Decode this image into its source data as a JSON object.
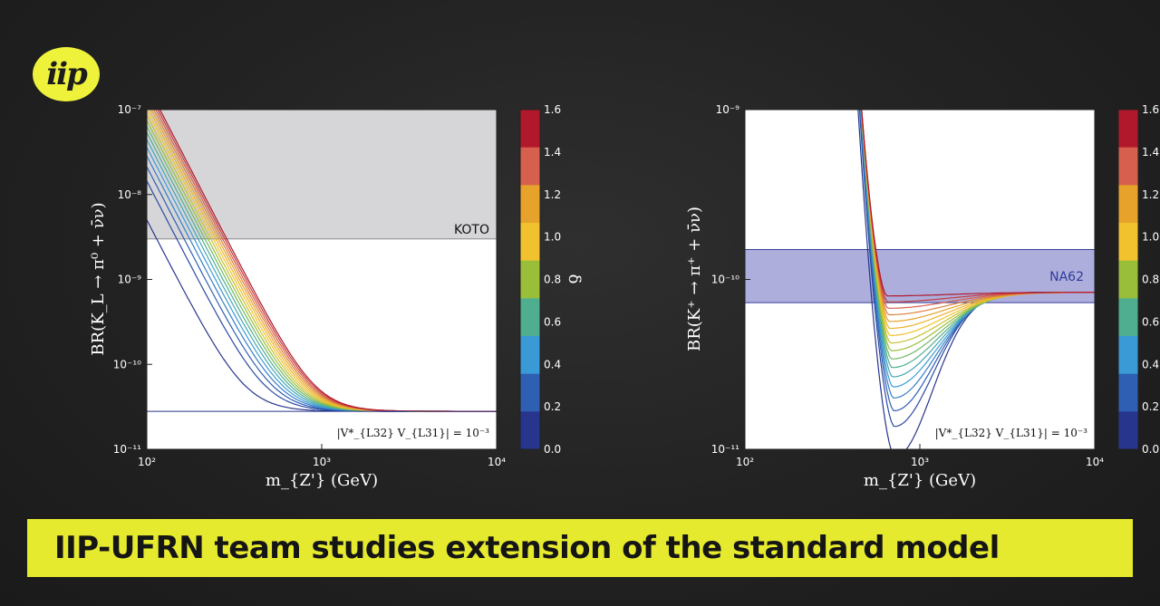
{
  "logo": {
    "text": "iip"
  },
  "banner": {
    "title": "IIP-UFRN team studies extension of the standard model"
  },
  "colorbar": {
    "label": "δ",
    "ticks": [
      "1.6",
      "1.4",
      "1.2",
      "1.0",
      "0.8",
      "0.6",
      "0.4",
      "0.2",
      "0.0"
    ],
    "colors": [
      "#b2182b",
      "#d6604d",
      "#e6a22b",
      "#f2c12e",
      "#99bf3a",
      "#4fae8f",
      "#3a9ad6",
      "#2f5fb3",
      "#27358c"
    ]
  },
  "chart_data": [
    {
      "type": "line",
      "xlabel": "m_{Z'} (GeV)",
      "ylabel": "BR(K_L → π⁰ + ν̄ν)",
      "xscale": "log",
      "yscale": "log",
      "xlim": [
        100,
        10000
      ],
      "ylim": [
        1e-11,
        1e-07
      ],
      "xticks": [
        "10²",
        "10³",
        "10⁴"
      ],
      "yticks": [
        "10⁻⁷",
        "10⁻⁸",
        "10⁻⁹",
        "10⁻¹⁰",
        "10⁻¹¹"
      ],
      "band": {
        "label": "KOTO",
        "from": 3e-09,
        "to": 1e-07,
        "color": "#d6d6d8"
      },
      "annotation": "|V*_{L32} V_{L31}| = 10⁻³",
      "floor": 2.8e-11,
      "series_count": 17,
      "delta_range": [
        0.0,
        1.6
      ],
      "amplitude_at_100GeV": [
        5e-09,
        2e-07
      ]
    },
    {
      "type": "line",
      "xlabel": "m_{Z'} (GeV)",
      "ylabel": "BR(K⁺ → π⁺ + ν̄ν)",
      "xscale": "log",
      "yscale": "log",
      "xlim": [
        100,
        10000
      ],
      "ylim": [
        1e-11,
        1e-09
      ],
      "xticks": [
        "10²",
        "10³",
        "10⁴"
      ],
      "yticks": [
        "10⁻⁹",
        "10⁻¹⁰",
        "10⁻¹¹"
      ],
      "band": {
        "label": "NA62",
        "from": 7.3e-11,
        "to": 1.5e-10,
        "color": "#9fa0d6"
      },
      "annotation": "|V*_{L32} V_{L31}| = 10⁻³",
      "asymptote": 8.4e-11,
      "series_count": 17,
      "delta_range": [
        0.0,
        1.6
      ],
      "minimum_at_GeV": [
        650,
        720
      ],
      "minimum_value": [
        9e-12,
        8e-11
      ]
    }
  ]
}
